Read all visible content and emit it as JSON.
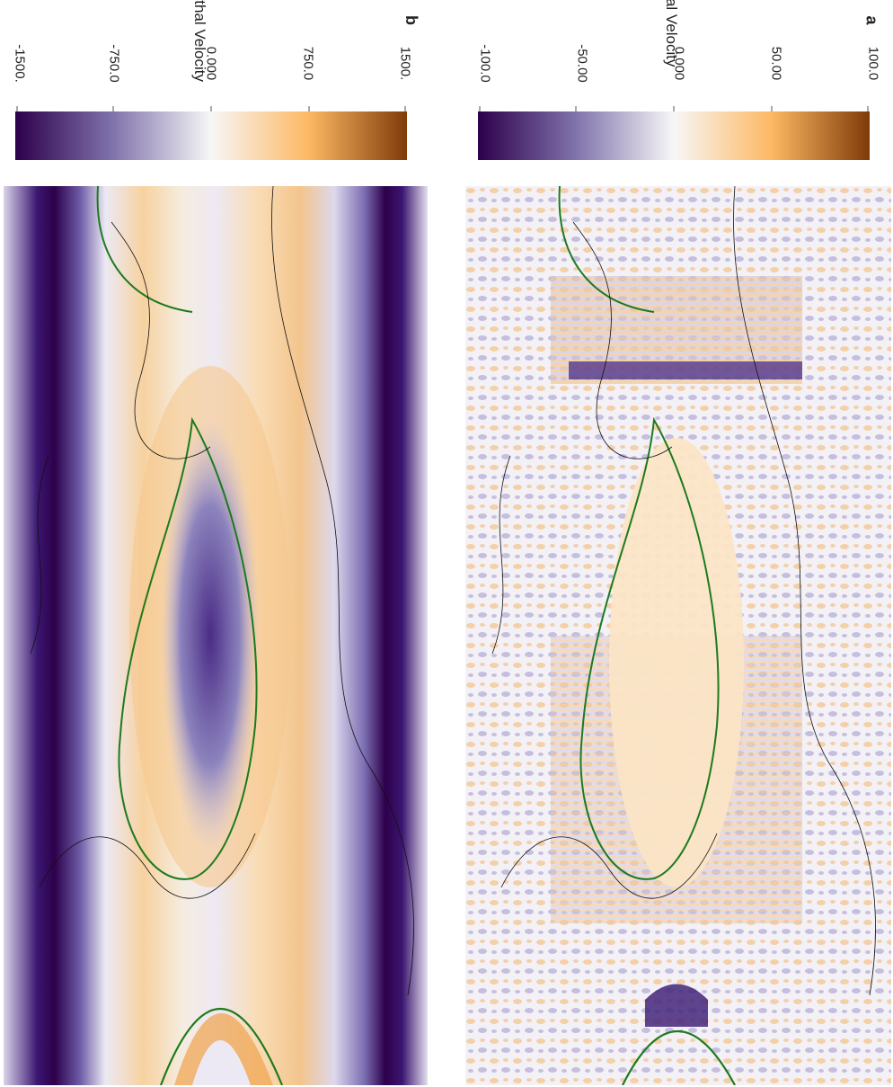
{
  "panels": [
    {
      "letter": "a",
      "title": "Radial Velocity",
      "colorbar": {
        "ticks": [
          "-100.0",
          "-50.00",
          "0.000",
          "50.00",
          "100.0"
        ],
        "values": [
          -100,
          -50,
          0,
          50,
          100
        ],
        "colormap": "PuOr",
        "colors": [
          "#2d004b",
          "#8073ac",
          "#f7f7f7",
          "#fdb863",
          "#7f3b08"
        ]
      },
      "field": "radial-velocity-map"
    },
    {
      "letter": "b",
      "title": "Azimuthal Velocity",
      "colorbar": {
        "ticks": [
          "-1500.",
          "-750.0",
          "0.000",
          "750.0",
          "1500."
        ],
        "values": [
          -1500,
          -750,
          0,
          750,
          1500
        ],
        "colormap": "PuOr",
        "colors": [
          "#2d004b",
          "#8073ac",
          "#f7f7f7",
          "#fdb863",
          "#7f3b08"
        ]
      },
      "field": "azimuthal-velocity-map"
    }
  ],
  "overlay": {
    "coastline_color": "#000000",
    "contour_color": "#1e7a1e"
  }
}
